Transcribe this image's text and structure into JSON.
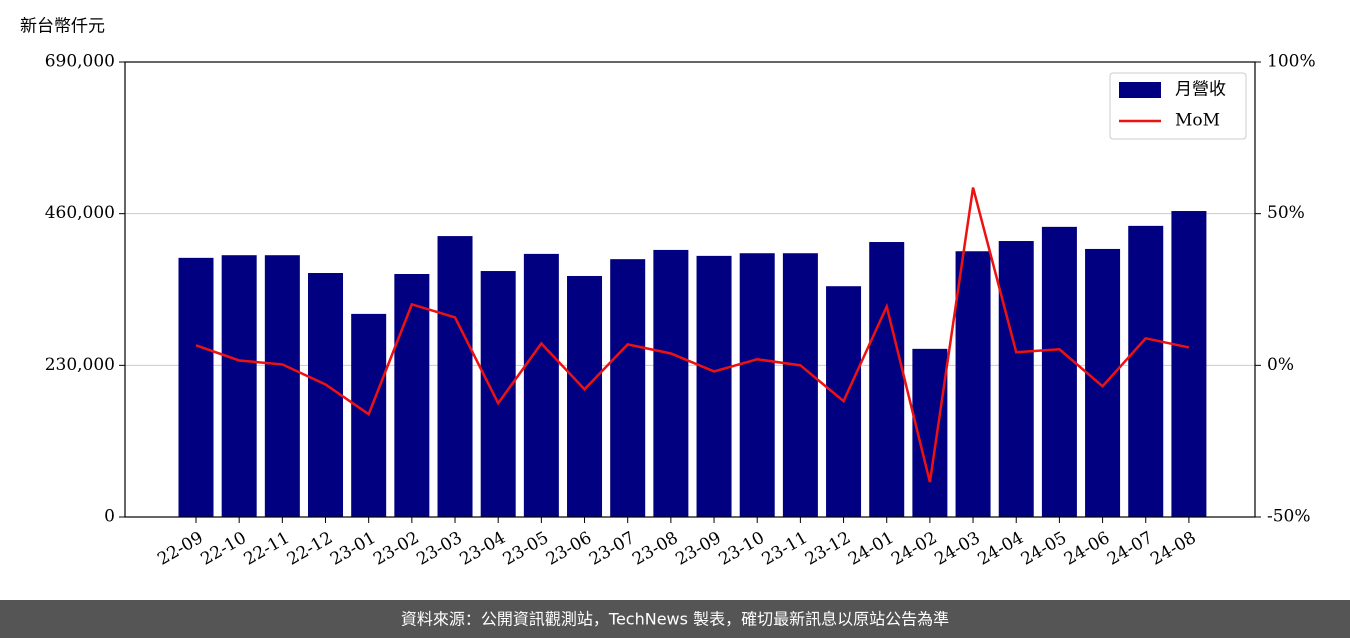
{
  "chart_data": {
    "type": "bar_line",
    "y_label": "新台幣仟元",
    "categories": [
      "22-09",
      "22-10",
      "22-11",
      "22-12",
      "23-01",
      "23-02",
      "23-03",
      "23-04",
      "23-05",
      "23-06",
      "23-07",
      "23-08",
      "23-09",
      "23-10",
      "23-11",
      "23-12",
      "24-01",
      "24-02",
      "24-03",
      "24-04",
      "24-05",
      "24-06",
      "24-07",
      "24-08"
    ],
    "series": [
      {
        "name": "月營收",
        "color": "#000080",
        "type": "bar",
        "values": [
          393000,
          397000,
          397000,
          370000,
          308000,
          368500,
          426000,
          373000,
          399000,
          365500,
          391000,
          405000,
          396000,
          400000,
          400000,
          350000,
          417000,
          255000,
          403000,
          418500,
          440000,
          406500,
          441500,
          464000
        ]
      },
      {
        "name": "MoM",
        "color": "#ee1111",
        "type": "line",
        "axis": "y2",
        "values": [
          6.6,
          1.6,
          0.3,
          -6.3,
          -16.1,
          20.1,
          15.8,
          -12.5,
          7.2,
          -7.9,
          6.9,
          3.9,
          -2.0,
          2.0,
          0.0,
          -11.8,
          19.4,
          -38.5,
          58.6,
          4.3,
          5.3,
          -6.9,
          8.9,
          5.9
        ]
      }
    ],
    "ylim": [
      0,
      690000
    ],
    "yticks": [
      0,
      {
        "value": 230000,
        "label": "230,000"
      },
      {
        "value": 460000,
        "label": "460,000"
      },
      {
        "value": 690000,
        "label": "690,000"
      }
    ],
    "y2lim": [
      -50,
      100
    ],
    "y2ticks": [
      {
        "value": -50,
        "label": "-50%"
      },
      {
        "value": 0,
        "label": "0%"
      },
      {
        "value": 50,
        "label": "50%"
      },
      {
        "value": 100,
        "label": "100%"
      }
    ],
    "grid": true,
    "legend": "upper right",
    "footer": "資料來源：公開資訊觀測站，TechNews 製表，確切最新訊息以原站公告為準"
  }
}
